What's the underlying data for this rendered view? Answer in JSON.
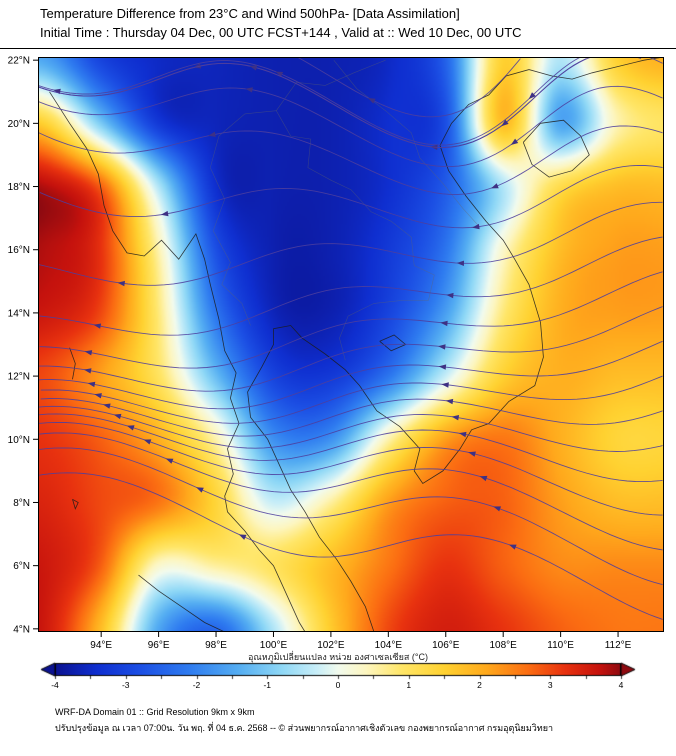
{
  "header": {
    "title_line1": "Temperature Difference from 23°C and Wind 500hPa- [Data Assimilation]",
    "title_line2": "Initial Time : Thursday 04 Dec, 00 UTC FCST+144 , Valid at ::  Wed 10 Dec, 00 UTC"
  },
  "footer": {
    "line1": "WRF-DA Domain 01 :: Grid Resolution 9km x 9km",
    "line2": "ปรับปรุงข้อมูล ณ เวลา 07:00น. วัน พฤ. ที่ 04 ธ.ค. 2568 -- © ส่วนพยากรณ์อากาศเชิงตัวเลข กองพยากรณ์อากาศ กรมอุตุนิยมวิทยา"
  },
  "chart_data": {
    "type": "heatmap",
    "title": "Temperature Difference from 23°C and Wind 500hPa- [Data Assimilation]",
    "subtitle": "Initial Time : Thursday 04 Dec, 00 UTC FCST+144 , Valid at ::  Wed 10 Dec, 00 UTC",
    "proj": {
      "lon_min": 91.8,
      "lon_max": 113.6,
      "lat_min": 3.9,
      "lat_max": 22.1
    },
    "x_ticks": [
      {
        "value": 94,
        "label": "94°E"
      },
      {
        "value": 96,
        "label": "96°E"
      },
      {
        "value": 98,
        "label": "98°E"
      },
      {
        "value": 100,
        "label": "100°E"
      },
      {
        "value": 102,
        "label": "102°E"
      },
      {
        "value": 104,
        "label": "104°E"
      },
      {
        "value": 106,
        "label": "106°E"
      },
      {
        "value": 108,
        "label": "108°E"
      },
      {
        "value": 110,
        "label": "110°E"
      },
      {
        "value": 112,
        "label": "112°E"
      }
    ],
    "y_ticks": [
      {
        "value": 4,
        "label": "4°N"
      },
      {
        "value": 6,
        "label": "6°N"
      },
      {
        "value": 8,
        "label": "8°N"
      },
      {
        "value": 10,
        "label": "10°N"
      },
      {
        "value": 12,
        "label": "12°N"
      },
      {
        "value": 14,
        "label": "14°N"
      },
      {
        "value": 16,
        "label": "16°N"
      },
      {
        "value": 18,
        "label": "18°N"
      },
      {
        "value": 20,
        "label": "20°N"
      },
      {
        "value": 22,
        "label": "22°N"
      }
    ],
    "colorbar": {
      "label": "อุณหภูมิเปลี่ยนแปลง หน่วย องศาเซลเซียส (°C)",
      "min": -4,
      "max": 4,
      "ticks": [
        -4,
        -3,
        -2,
        -1,
        0,
        1,
        2,
        3,
        4
      ]
    },
    "colormap": [
      [
        -4.0,
        "#0b1290"
      ],
      [
        -3.4,
        "#0f2fd0"
      ],
      [
        -2.8,
        "#1c4fe4"
      ],
      [
        -2.1,
        "#2f7cf0"
      ],
      [
        -1.4,
        "#55aef2"
      ],
      [
        -0.8,
        "#8fd8f6"
      ],
      [
        -0.3,
        "#c8eef8"
      ],
      [
        0.0,
        "#f2fbee"
      ],
      [
        0.4,
        "#fdf6c0"
      ],
      [
        0.9,
        "#ffe668"
      ],
      [
        1.5,
        "#ffd231"
      ],
      [
        2.1,
        "#ffa91c"
      ],
      [
        2.7,
        "#fb6c12"
      ],
      [
        3.2,
        "#e8320f"
      ],
      [
        3.7,
        "#c5120d"
      ],
      [
        4.0,
        "#8e0a10"
      ]
    ],
    "field": {
      "units": "°C difference from 23°C",
      "lon_start": 92,
      "lon_step": 2,
      "lat_start": 22,
      "lat_step": -2,
      "values": [
        [
          -1.5,
          -3.0,
          -3.5,
          -3.6,
          -3.7,
          -3.7,
          -3.5,
          -2.5,
          1.5,
          -0.5,
          1.5,
          2.0
        ],
        [
          1.5,
          -1.0,
          -3.2,
          -3.6,
          -3.7,
          -3.7,
          -3.4,
          -2.8,
          1.8,
          -1.5,
          0.5,
          1.0
        ],
        [
          3.8,
          2.8,
          -0.5,
          -3.4,
          -3.7,
          -3.7,
          -3.4,
          -2.6,
          -0.5,
          1.2,
          1.8,
          1.8
        ],
        [
          3.8,
          3.2,
          0.5,
          -2.8,
          -3.7,
          -3.7,
          -3.2,
          -2.2,
          0.3,
          1.8,
          2.2,
          2.2
        ],
        [
          3.6,
          3.0,
          0.8,
          -2.2,
          -3.6,
          -3.7,
          -3.0,
          -1.6,
          0.8,
          2.0,
          2.2,
          2.2
        ],
        [
          3.0,
          2.2,
          1.0,
          -1.2,
          -3.0,
          -3.2,
          -2.2,
          -0.3,
          1.5,
          2.0,
          1.8,
          1.8
        ],
        [
          3.2,
          2.8,
          2.0,
          0.5,
          -1.8,
          -1.8,
          0.5,
          2.2,
          2.6,
          2.0,
          1.4,
          1.4
        ],
        [
          3.4,
          3.0,
          2.6,
          1.4,
          -0.3,
          0.6,
          2.2,
          2.8,
          2.8,
          2.2,
          1.8,
          1.8
        ],
        [
          3.6,
          2.8,
          0.3,
          0.6,
          1.0,
          1.8,
          2.6,
          3.2,
          2.8,
          2.4,
          2.4,
          2.4
        ],
        [
          3.6,
          1.8,
          -1.5,
          -2.4,
          -0.5,
          1.6,
          3.0,
          3.5,
          3.2,
          2.8,
          2.6,
          2.6
        ]
      ]
    },
    "wind": {
      "level": "500hPa",
      "line_color": "#4d3f9e",
      "arrow_color": "#3e3184",
      "seed_lat_start": 4.3,
      "seed_lat_step": 1.1,
      "seed_count": 17
    },
    "map": {
      "coast_color": "#1c1c1c",
      "border_color": "#666666",
      "coastlines": [
        [
          [
            92.2,
            21.0
          ],
          [
            92.9,
            20.0
          ],
          [
            93.5,
            19.2
          ],
          [
            93.9,
            18.4
          ],
          [
            94.1,
            17.4
          ],
          [
            94.4,
            16.6
          ],
          [
            94.9,
            15.9
          ],
          [
            95.5,
            15.8
          ],
          [
            96.1,
            16.3
          ],
          [
            96.7,
            15.7
          ],
          [
            97.3,
            16.5
          ],
          [
            97.6,
            15.7
          ],
          [
            97.8,
            14.9
          ],
          [
            98.1,
            13.8
          ],
          [
            98.3,
            12.8
          ],
          [
            98.7,
            12.1
          ],
          [
            98.5,
            11.3
          ],
          [
            98.8,
            10.5
          ],
          [
            98.4,
            9.7
          ],
          [
            98.6,
            8.9
          ],
          [
            98.3,
            8.2
          ],
          [
            98.4,
            7.7
          ],
          [
            99.0,
            7.1
          ],
          [
            99.5,
            6.5
          ],
          [
            100.0,
            6.0
          ],
          [
            100.3,
            5.4
          ],
          [
            100.6,
            4.8
          ],
          [
            100.9,
            4.2
          ],
          [
            101.1,
            3.9
          ]
        ],
        [
          [
            103.5,
            3.9
          ],
          [
            103.2,
            4.7
          ],
          [
            102.7,
            5.5
          ],
          [
            102.2,
            6.2
          ],
          [
            101.6,
            6.9
          ],
          [
            101.1,
            7.7
          ],
          [
            100.6,
            8.4
          ],
          [
            100.2,
            9.2
          ],
          [
            99.8,
            10.0
          ],
          [
            99.2,
            10.7
          ],
          [
            99.1,
            11.5
          ],
          [
            99.6,
            12.3
          ],
          [
            100.0,
            13.0
          ],
          [
            100.0,
            13.5
          ],
          [
            100.6,
            13.6
          ],
          [
            101.0,
            13.2
          ],
          [
            101.8,
            12.7
          ],
          [
            102.5,
            12.2
          ],
          [
            103.0,
            11.7
          ],
          [
            103.6,
            10.9
          ],
          [
            104.4,
            10.4
          ],
          [
            105.1,
            9.7
          ],
          [
            104.9,
            9.0
          ],
          [
            105.2,
            8.6
          ],
          [
            105.9,
            9.0
          ],
          [
            106.5,
            9.7
          ],
          [
            106.9,
            10.3
          ],
          [
            107.5,
            10.5
          ],
          [
            108.2,
            11.2
          ],
          [
            109.1,
            11.7
          ],
          [
            109.4,
            12.6
          ],
          [
            109.3,
            13.7
          ],
          [
            108.9,
            14.9
          ],
          [
            108.4,
            15.7
          ],
          [
            108.0,
            16.3
          ],
          [
            107.4,
            16.9
          ],
          [
            106.7,
            17.7
          ],
          [
            106.1,
            18.5
          ],
          [
            105.8,
            19.3
          ],
          [
            106.2,
            20.0
          ],
          [
            106.8,
            20.6
          ],
          [
            107.5,
            20.9
          ],
          [
            108.1,
            21.5
          ],
          [
            108.9,
            21.7
          ],
          [
            109.7,
            21.5
          ],
          [
            110.4,
            21.4
          ],
          [
            111.1,
            21.6
          ],
          [
            112.0,
            21.8
          ],
          [
            112.9,
            22.0
          ],
          [
            113.6,
            22.1
          ]
        ],
        [
          [
            108.7,
            19.4
          ],
          [
            109.3,
            20.0
          ],
          [
            110.1,
            20.1
          ],
          [
            110.7,
            19.6
          ],
          [
            111.0,
            19.0
          ],
          [
            110.4,
            18.5
          ],
          [
            109.6,
            18.3
          ],
          [
            109.0,
            18.7
          ],
          [
            108.7,
            19.4
          ]
        ],
        [
          [
            95.3,
            5.7
          ],
          [
            96.0,
            5.2
          ],
          [
            96.8,
            4.7
          ],
          [
            97.6,
            4.2
          ],
          [
            98.3,
            3.9
          ]
        ],
        [
          [
            103.7,
            13.1
          ],
          [
            104.2,
            13.3
          ],
          [
            104.6,
            13.0
          ],
          [
            104.1,
            12.8
          ],
          [
            103.7,
            13.1
          ]
        ],
        [
          [
            93.0,
            8.1
          ],
          [
            93.2,
            8.0
          ],
          [
            93.1,
            7.8
          ],
          [
            93.0,
            8.1
          ]
        ],
        [
          [
            92.9,
            12.9
          ],
          [
            93.1,
            12.4
          ],
          [
            93.0,
            11.9
          ]
        ]
      ],
      "borders": [
        [
          [
            100.1,
            20.4
          ],
          [
            100.6,
            19.6
          ],
          [
            101.3,
            19.5
          ],
          [
            101.2,
            18.6
          ],
          [
            102.0,
            18.2
          ],
          [
            102.7,
            17.9
          ],
          [
            103.4,
            17.2
          ],
          [
            104.1,
            16.9
          ],
          [
            104.8,
            16.4
          ],
          [
            104.9,
            15.5
          ],
          [
            105.6,
            15.2
          ],
          [
            105.4,
            14.4
          ]
        ],
        [
          [
            105.4,
            14.4
          ],
          [
            104.5,
            14.4
          ],
          [
            103.5,
            14.3
          ],
          [
            102.6,
            13.9
          ],
          [
            102.3,
            13.2
          ],
          [
            102.5,
            12.5
          ]
        ],
        [
          [
            97.8,
            18.6
          ],
          [
            98.3,
            17.6
          ],
          [
            97.9,
            16.6
          ],
          [
            98.5,
            15.6
          ],
          [
            98.2,
            14.9
          ],
          [
            98.9,
            14.3
          ],
          [
            99.2,
            13.6
          ]
        ],
        [
          [
            97.8,
            18.6
          ],
          [
            98.1,
            19.6
          ],
          [
            99.0,
            20.3
          ],
          [
            100.1,
            20.4
          ],
          [
            100.8,
            21.3
          ],
          [
            101.8,
            21.2
          ],
          [
            102.8,
            21.6
          ],
          [
            103.9,
            22.0
          ]
        ],
        [
          [
            102.1,
            22.0
          ],
          [
            102.9,
            21.1
          ],
          [
            103.9,
            20.4
          ],
          [
            104.8,
            19.7
          ],
          [
            105.1,
            18.9
          ],
          [
            105.9,
            18.1
          ],
          [
            106.6,
            17.3
          ],
          [
            107.2,
            16.7
          ]
        ]
      ]
    }
  }
}
